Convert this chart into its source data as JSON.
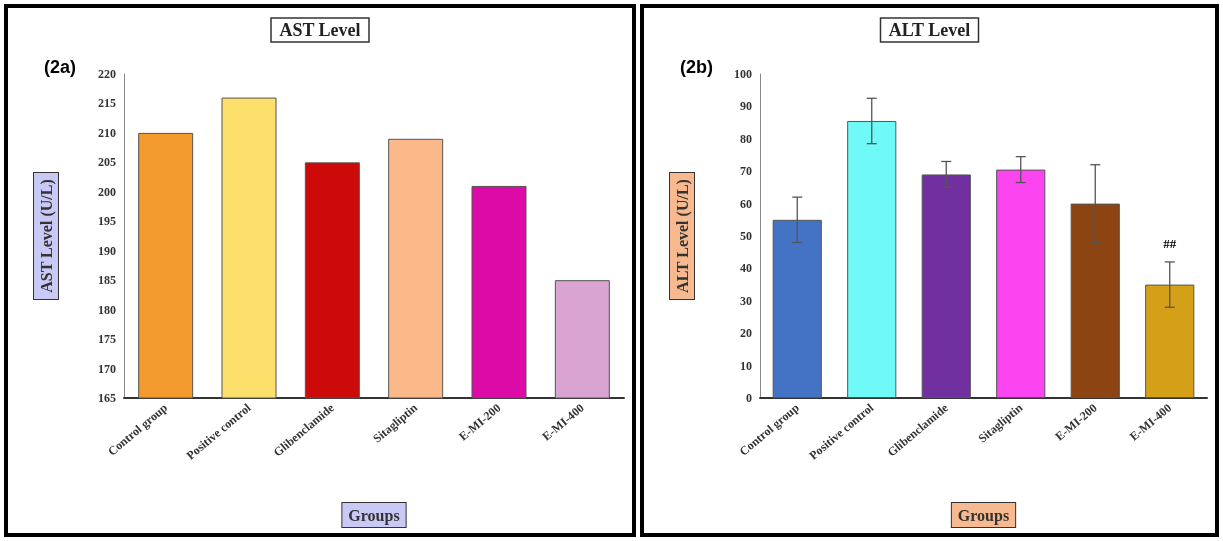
{
  "chart_data": [
    {
      "type": "bar",
      "title": "AST Level",
      "xlabel": "Groups",
      "ylabel": "AST Level (U/L)",
      "annotations": [
        "(2a)"
      ],
      "categories": [
        "Control group",
        "Positive control",
        "Glibenclamide",
        "Sitagliptin",
        "E-MI-200",
        "E-MI-400"
      ],
      "values": [
        210,
        216,
        205,
        209,
        201,
        185
      ],
      "colors": [
        "#f39a2e",
        "#fde06c",
        "#cc0a0a",
        "#fbb98a",
        "#dc0aa6",
        "#d9a3d2"
      ],
      "ylim": [
        165,
        220
      ],
      "yticks": [
        165,
        170,
        175,
        180,
        185,
        190,
        195,
        200,
        205,
        210,
        215,
        220
      ],
      "grid": false
    },
    {
      "type": "bar",
      "title": "ALT Level",
      "xlabel": "Groups",
      "ylabel": "ALT Level (U/L)",
      "annotations": [
        "(2b)",
        "##"
      ],
      "categories": [
        "Control group",
        "Positive control",
        "Glibenclamide",
        "Sitagliptin",
        "E-MI-200",
        "E-MI-400"
      ],
      "values": [
        55,
        85.5,
        69,
        70.5,
        60,
        35
      ],
      "errors": [
        7,
        7,
        4,
        4,
        12,
        7
      ],
      "colors": [
        "#4473c5",
        "#6ffaf8",
        "#7030a0",
        "#fb45f0",
        "#8b4412",
        "#d4a017"
      ],
      "ylim": [
        0,
        100
      ],
      "yticks": [
        0,
        10,
        20,
        30,
        40,
        50,
        60,
        70,
        80,
        90,
        100
      ],
      "grid": false
    }
  ]
}
